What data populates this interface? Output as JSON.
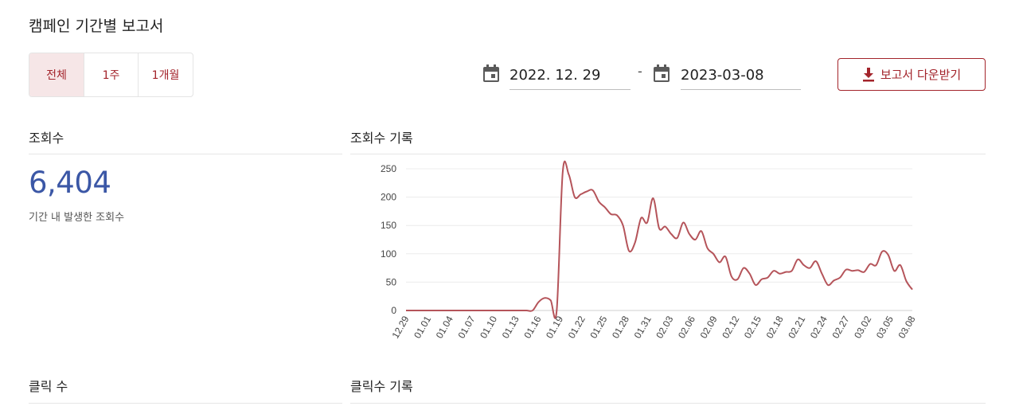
{
  "page": {
    "title": "캠페인 기간별 보고서"
  },
  "range_tabs": [
    {
      "label": "전체",
      "active": true
    },
    {
      "label": "1주",
      "active": false
    },
    {
      "label": "1개월",
      "active": false
    }
  ],
  "date_range": {
    "start": "2022. 12. 29",
    "separator": "-",
    "end": "2023-03-08",
    "icon": "calendar-icon"
  },
  "download": {
    "label": "보고서 다운받기",
    "icon": "download-icon"
  },
  "views": {
    "section_label": "조회수",
    "total": "6,404",
    "caption": "기간 내 발생한 조회수",
    "chart_label": "조회수 기록"
  },
  "clicks": {
    "section_label": "클릭 수",
    "chart_label": "클릭수 기록"
  },
  "colors": {
    "accent": "#a3242b",
    "number": "#3b57a6",
    "line": "#b5545a",
    "active_tab_bg": "#f6e6e7"
  },
  "chart_data": {
    "type": "line",
    "title": "",
    "xlabel": "",
    "ylabel": "",
    "ylim": [
      0,
      250
    ],
    "yticks": [
      0,
      50,
      100,
      150,
      200,
      250
    ],
    "grid": true,
    "x_tick_labels": [
      "12.29",
      "01.01",
      "01.04",
      "01.07",
      "01.10",
      "01.13",
      "01.16",
      "01.19",
      "01.22",
      "01.25",
      "01.28",
      "01.31",
      "02.03",
      "02.06",
      "02.09",
      "02.12",
      "02.15",
      "02.18",
      "02.21",
      "02.24",
      "02.27",
      "03.02",
      "03.05",
      "03.08"
    ],
    "series": [
      {
        "values": [
          0,
          0,
          0,
          0,
          0,
          0,
          0,
          0,
          0,
          0,
          0,
          0,
          0,
          0,
          0,
          0,
          0,
          0,
          0,
          0,
          0,
          0,
          15,
          22,
          18,
          0,
          245,
          240,
          200,
          205,
          210,
          212,
          192,
          182,
          170,
          168,
          150,
          105,
          120,
          163,
          155,
          198,
          145,
          148,
          135,
          128,
          155,
          135,
          125,
          140,
          110,
          100,
          85,
          95,
          60,
          55,
          75,
          65,
          45,
          55,
          58,
          70,
          65,
          68,
          70,
          90,
          80,
          75,
          87,
          65,
          45,
          53,
          58,
          72,
          70,
          71,
          68,
          82,
          80,
          104,
          98,
          70,
          80,
          52,
          37
        ]
      }
    ]
  }
}
